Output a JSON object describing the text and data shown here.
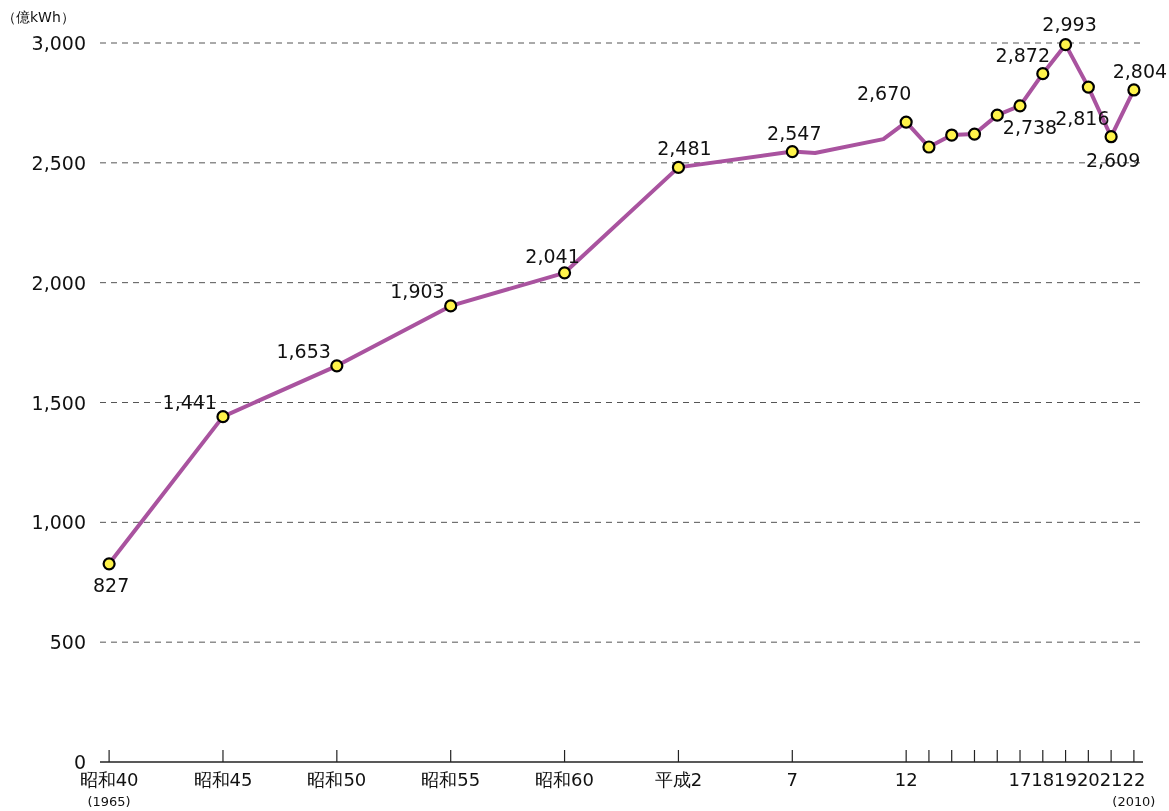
{
  "chart_data": {
    "type": "line",
    "ylabel": "（億kWh）",
    "ylim": [
      0,
      3000
    ],
    "yticks": [
      {
        "value": 0,
        "label": "0"
      },
      {
        "value": 500,
        "label": "500"
      },
      {
        "value": 1000,
        "label": "1,000"
      },
      {
        "value": 1500,
        "label": "1,500"
      },
      {
        "value": 2000,
        "label": "2,000"
      },
      {
        "value": 2500,
        "label": "2,500"
      },
      {
        "value": 3000,
        "label": "3,000"
      }
    ],
    "categories": [
      "昭和40$_{(1965)}$",
      null,
      null,
      null,
      null,
      "昭和45",
      null,
      null,
      null,
      null,
      "昭和50",
      null,
      null,
      null,
      null,
      "昭和55",
      null,
      null,
      null,
      null,
      "昭和60",
      null,
      null,
      null,
      null,
      "平成2",
      null,
      null,
      null,
      null,
      "7",
      null,
      null,
      null,
      null,
      "12",
      null,
      null,
      null,
      null,
      "17",
      "18",
      "19",
      "20",
      "21",
      "22$_{(2010)}$"
    ],
    "grid": "y",
    "series": [
      {
        "color": "#a9539f",
        "values": [
          827,
          null,
          null,
          null,
          null,
          1441,
          null,
          null,
          null,
          null,
          1653,
          null,
          null,
          null,
          null,
          1903,
          null,
          null,
          null,
          null,
          2041,
          null,
          null,
          null,
          null,
          2481,
          null,
          null,
          null,
          null,
          2547,
          2541,
          null,
          null,
          2599,
          2670,
          2566,
          2616,
          2620,
          2699,
          2738,
          2872,
          2993,
          2816,
          2609,
          2804
        ]
      },
      {
        "type": "scatter",
        "marker": "circle",
        "color": "#fff34a",
        "values": [
          827,
          null,
          null,
          null,
          null,
          1441,
          null,
          null,
          null,
          null,
          1653,
          null,
          null,
          null,
          null,
          1903,
          null,
          null,
          null,
          null,
          2041,
          null,
          null,
          null,
          null,
          2481,
          null,
          null,
          null,
          null,
          2547,
          null,
          null,
          null,
          null,
          2670,
          2566,
          2616,
          2620,
          2699,
          2738,
          2872,
          2993,
          2816,
          2609,
          2804
        ],
        "value_labels": [
          "827",
          null,
          null,
          null,
          null,
          "1,441",
          null,
          null,
          null,
          null,
          "1,653",
          null,
          null,
          null,
          null,
          "1,903",
          null,
          null,
          null,
          null,
          "2,041",
          null,
          null,
          null,
          null,
          "2,481",
          null,
          null,
          null,
          null,
          "2,547",
          null,
          null,
          null,
          null,
          "2,670",
          null,
          null,
          null,
          null,
          "2,738",
          "2,872",
          "2,993",
          "2,816",
          "2,609",
          "2,804"
        ]
      }
    ]
  }
}
